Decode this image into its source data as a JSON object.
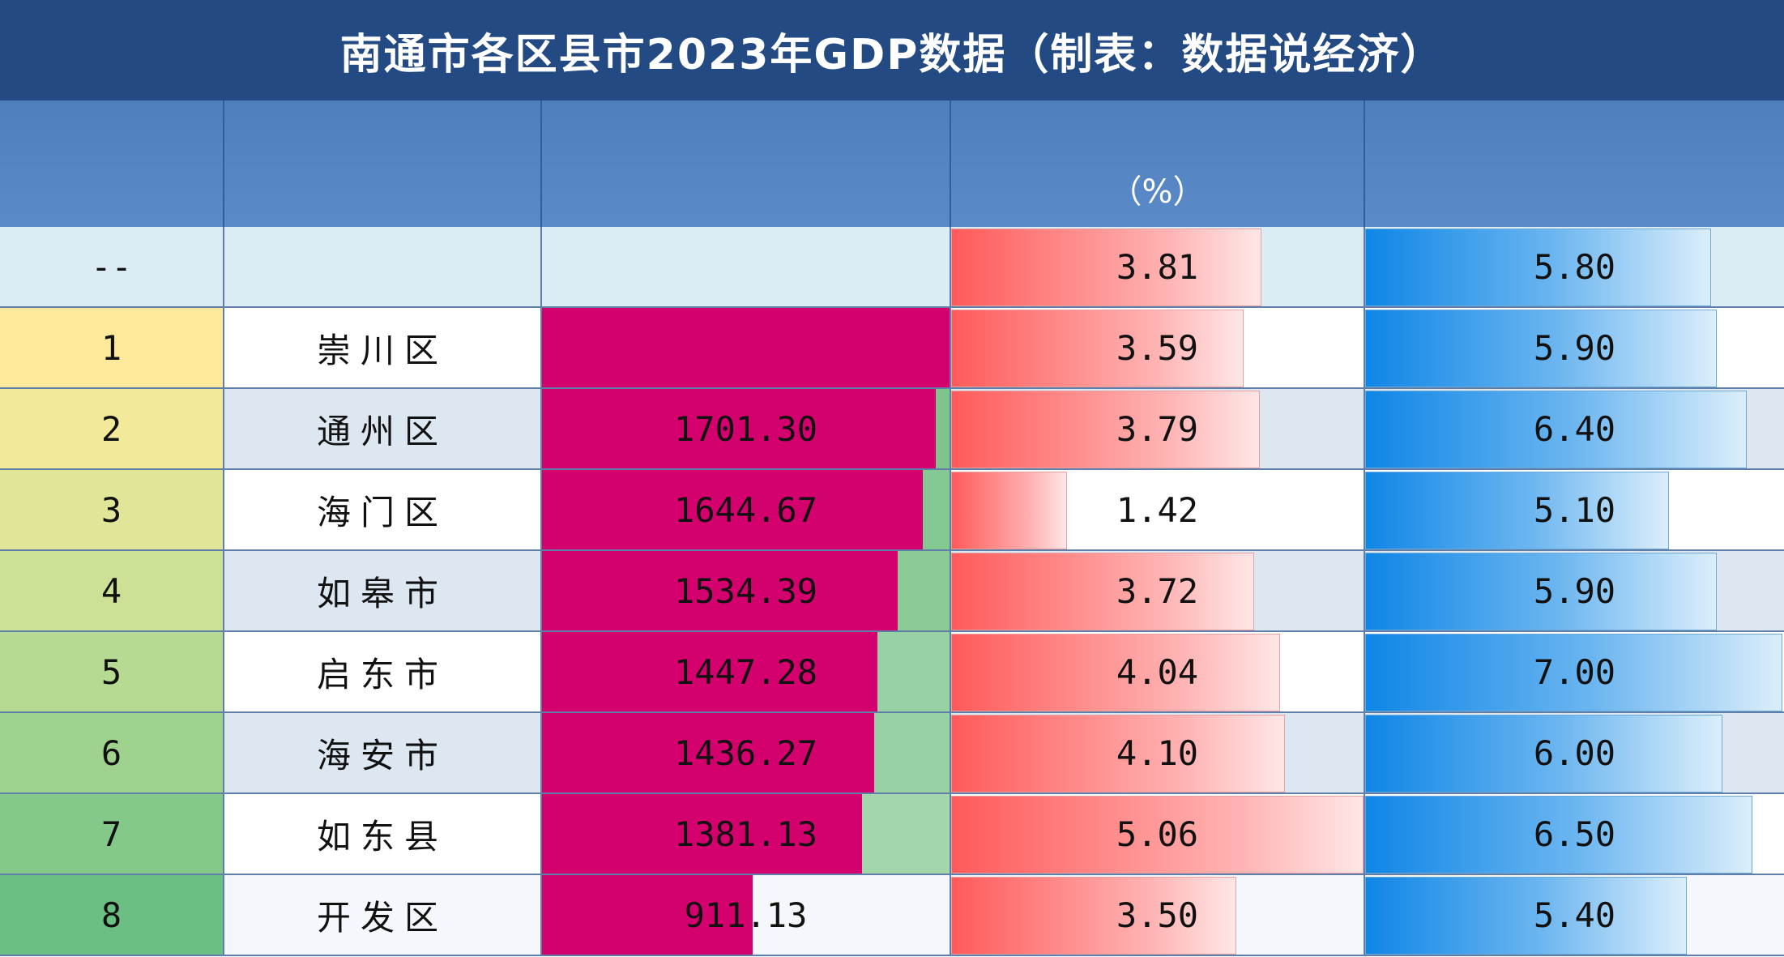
{
  "title": "南通市各区县市2023年GDP数据（制表：数据说经济）",
  "header": {
    "col_rank": "",
    "col_region": "",
    "col_gdp": "",
    "col_growth": "（%）",
    "col_percapita": ""
  },
  "colors": {
    "title_bg": "#234a82",
    "header_bg": "#5a8ac8",
    "gdp_bar": "#d4006e",
    "growth_bar": "#ff5a5a",
    "second_bar": "#0f86e6"
  },
  "chart_data": {
    "type": "table",
    "title": "南通市各区县市2023年GDP数据（制表：数据说经济）",
    "gdp_max": 1760,
    "growth_max": 5.06,
    "second_max": 7.0,
    "rows": [
      {
        "rank": "--",
        "region": "",
        "gdp": "",
        "gdp_value": null,
        "growth": "3.81",
        "growth_value": 3.81,
        "second": "5.80",
        "second_value": 5.8,
        "rank_color": "#dcecf4",
        "row_bg": "#dcecf4",
        "gdp_track": "#dcecf4"
      },
      {
        "rank": "1",
        "region": "崇川区",
        "gdp": "",
        "gdp_value": 1760,
        "growth": "3.59",
        "growth_value": 3.59,
        "second": "5.90",
        "second_value": 5.9,
        "rank_color": "#fde99b",
        "row_bg": "#ffffff",
        "gdp_track": "#7dc58d"
      },
      {
        "rank": "2",
        "region": "通州区",
        "gdp": "1701.30",
        "gdp_value": 1701.3,
        "growth": "3.79",
        "growth_value": 3.79,
        "second": "6.40",
        "second_value": 6.4,
        "rank_color": "#f3e99a",
        "row_bg": "#dde7f1",
        "gdp_track": "#7dc58d"
      },
      {
        "rank": "3",
        "region": "海门区",
        "gdp": "1644.67",
        "gdp_value": 1644.67,
        "growth": "1.42",
        "growth_value": 1.42,
        "second": "5.10",
        "second_value": 5.1,
        "rank_color": "#e0e598",
        "row_bg": "#ffffff",
        "gdp_track": "#84c893"
      },
      {
        "rank": "4",
        "region": "如皋市",
        "gdp": "1534.39",
        "gdp_value": 1534.39,
        "growth": "3.72",
        "growth_value": 3.72,
        "second": "5.90",
        "second_value": 5.9,
        "rank_color": "#cde196",
        "row_bg": "#dde7f1",
        "gdp_track": "#8ccb98"
      },
      {
        "rank": "5",
        "region": "启东市",
        "gdp": "1447.28",
        "gdp_value": 1447.28,
        "growth": "4.04",
        "growth_value": 4.04,
        "second": "7.00",
        "second_value": 7.0,
        "rank_color": "#b6da92",
        "row_bg": "#ffffff",
        "gdp_track": "#98d2a4"
      },
      {
        "rank": "6",
        "region": "海安市",
        "gdp": "1436.27",
        "gdp_value": 1436.27,
        "growth": "4.10",
        "growth_value": 4.1,
        "second": "6.00",
        "second_value": 6.0,
        "rank_color": "#9fd28e",
        "row_bg": "#dde7f1",
        "gdp_track": "#98d2a4"
      },
      {
        "rank": "7",
        "region": "如东县",
        "gdp": "1381.13",
        "gdp_value": 1381.13,
        "growth": "5.06",
        "growth_value": 5.06,
        "second": "6.50",
        "second_value": 6.5,
        "rank_color": "#85c98a",
        "row_bg": "#ffffff",
        "gdp_track": "#a3d6ad"
      },
      {
        "rank": "8",
        "region": "开发区",
        "gdp": "911.13",
        "gdp_value": 911.13,
        "growth": "3.50",
        "growth_value": 3.5,
        "second": "5.40",
        "second_value": 5.4,
        "rank_color": "#6bbf83",
        "row_bg": "#f4f7fb",
        "gdp_track": "#f4f7fb"
      }
    ]
  }
}
